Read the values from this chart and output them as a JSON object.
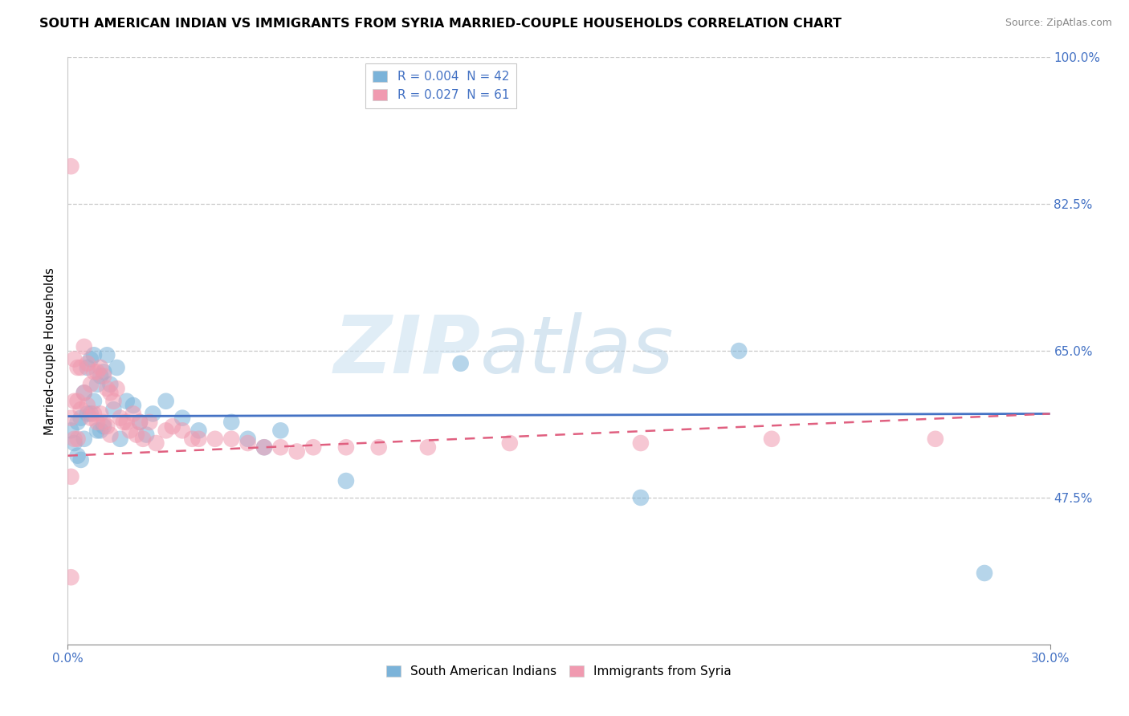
{
  "title": "SOUTH AMERICAN INDIAN VS IMMIGRANTS FROM SYRIA MARRIED-COUPLE HOUSEHOLDS CORRELATION CHART",
  "source": "Source: ZipAtlas.com",
  "ylabel": "Married-couple Households",
  "xlim": [
    0.0,
    0.3
  ],
  "ylim": [
    0.3,
    1.0
  ],
  "ytick_positions": [
    0.475,
    0.65,
    0.825,
    1.0
  ],
  "ytick_labels": [
    "47.5%",
    "65.0%",
    "82.5%",
    "100.0%"
  ],
  "xtick_positions": [
    0.0,
    0.3
  ],
  "xtick_labels": [
    "0.0%",
    "30.0%"
  ],
  "legend_top": [
    {
      "label": "R = 0.004  N = 42",
      "color": "#a8c8e8"
    },
    {
      "label": "R = 0.027  N = 61",
      "color": "#f0a8c0"
    }
  ],
  "legend_bottom": [
    {
      "label": "South American Indians",
      "color": "#a8c8e8"
    },
    {
      "label": "Immigrants from Syria",
      "color": "#f0a8c0"
    }
  ],
  "blue_scatter_x": [
    0.001,
    0.002,
    0.003,
    0.003,
    0.004,
    0.004,
    0.005,
    0.005,
    0.006,
    0.006,
    0.007,
    0.007,
    0.008,
    0.008,
    0.009,
    0.009,
    0.01,
    0.01,
    0.011,
    0.011,
    0.012,
    0.013,
    0.014,
    0.015,
    0.016,
    0.018,
    0.02,
    0.022,
    0.024,
    0.026,
    0.03,
    0.035,
    0.04,
    0.05,
    0.055,
    0.06,
    0.065,
    0.085,
    0.12,
    0.175,
    0.205,
    0.28
  ],
  "blue_scatter_y": [
    0.555,
    0.54,
    0.565,
    0.525,
    0.57,
    0.52,
    0.6,
    0.545,
    0.63,
    0.575,
    0.64,
    0.575,
    0.645,
    0.59,
    0.61,
    0.555,
    0.62,
    0.555,
    0.625,
    0.56,
    0.645,
    0.61,
    0.58,
    0.63,
    0.545,
    0.59,
    0.585,
    0.565,
    0.55,
    0.575,
    0.59,
    0.57,
    0.555,
    0.565,
    0.545,
    0.535,
    0.555,
    0.495,
    0.635,
    0.475,
    0.65,
    0.385
  ],
  "pink_scatter_x": [
    0.001,
    0.001,
    0.001,
    0.001,
    0.002,
    0.002,
    0.002,
    0.003,
    0.003,
    0.003,
    0.004,
    0.004,
    0.005,
    0.005,
    0.006,
    0.006,
    0.007,
    0.007,
    0.008,
    0.008,
    0.009,
    0.009,
    0.01,
    0.01,
    0.011,
    0.011,
    0.012,
    0.012,
    0.013,
    0.013,
    0.014,
    0.015,
    0.016,
    0.017,
    0.018,
    0.019,
    0.02,
    0.021,
    0.022,
    0.023,
    0.025,
    0.027,
    0.03,
    0.032,
    0.035,
    0.038,
    0.04,
    0.045,
    0.05,
    0.055,
    0.06,
    0.065,
    0.07,
    0.075,
    0.085,
    0.095,
    0.11,
    0.135,
    0.175,
    0.215,
    0.265
  ],
  "pink_scatter_y": [
    0.87,
    0.57,
    0.5,
    0.38,
    0.64,
    0.59,
    0.545,
    0.63,
    0.59,
    0.545,
    0.63,
    0.58,
    0.655,
    0.6,
    0.635,
    0.585,
    0.61,
    0.57,
    0.625,
    0.575,
    0.625,
    0.565,
    0.63,
    0.575,
    0.62,
    0.565,
    0.605,
    0.56,
    0.6,
    0.55,
    0.59,
    0.605,
    0.57,
    0.565,
    0.565,
    0.555,
    0.575,
    0.55,
    0.565,
    0.545,
    0.565,
    0.54,
    0.555,
    0.56,
    0.555,
    0.545,
    0.545,
    0.545,
    0.545,
    0.54,
    0.535,
    0.535,
    0.53,
    0.535,
    0.535,
    0.535,
    0.535,
    0.54,
    0.54,
    0.545,
    0.545
  ],
  "blue_line": {
    "x0": 0.0,
    "y0": 0.572,
    "x1": 0.3,
    "y1": 0.575
  },
  "pink_line": {
    "x0": 0.0,
    "y0": 0.525,
    "x1": 0.3,
    "y1": 0.575
  },
  "blue_color": "#7bb3d9",
  "pink_color": "#f09ab0",
  "blue_line_color": "#4472C4",
  "pink_line_color": "#E06080",
  "watermark_zip": "ZIP",
  "watermark_atlas": "atlas",
  "background_color": "#ffffff",
  "grid_color": "#c8c8c8",
  "title_fontsize": 11.5,
  "source_fontsize": 9,
  "tick_fontsize": 11,
  "ylabel_fontsize": 11
}
